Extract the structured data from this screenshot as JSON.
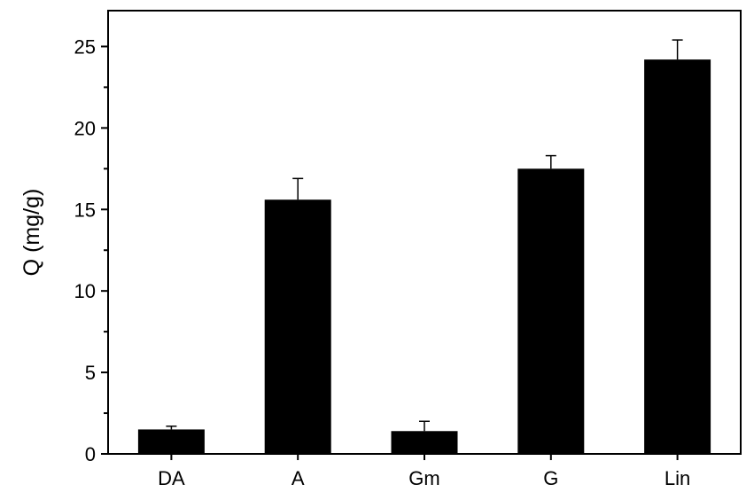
{
  "chart_data": {
    "type": "bar",
    "categories": [
      "DA",
      "A",
      "Gm",
      "G",
      "Lin"
    ],
    "values": [
      1.5,
      15.6,
      1.4,
      17.5,
      24.2
    ],
    "errors": [
      0.2,
      1.3,
      0.6,
      0.8,
      1.2
    ],
    "ylabel": "Q (mg/g)",
    "xlabel": "",
    "ylim": [
      0,
      27.2
    ],
    "yticks": [
      0,
      5,
      10,
      15,
      20,
      25
    ],
    "minor_ytick_step": 2.5,
    "grid": false,
    "bar_color": "#000000",
    "error_bar_direction": "upper"
  }
}
